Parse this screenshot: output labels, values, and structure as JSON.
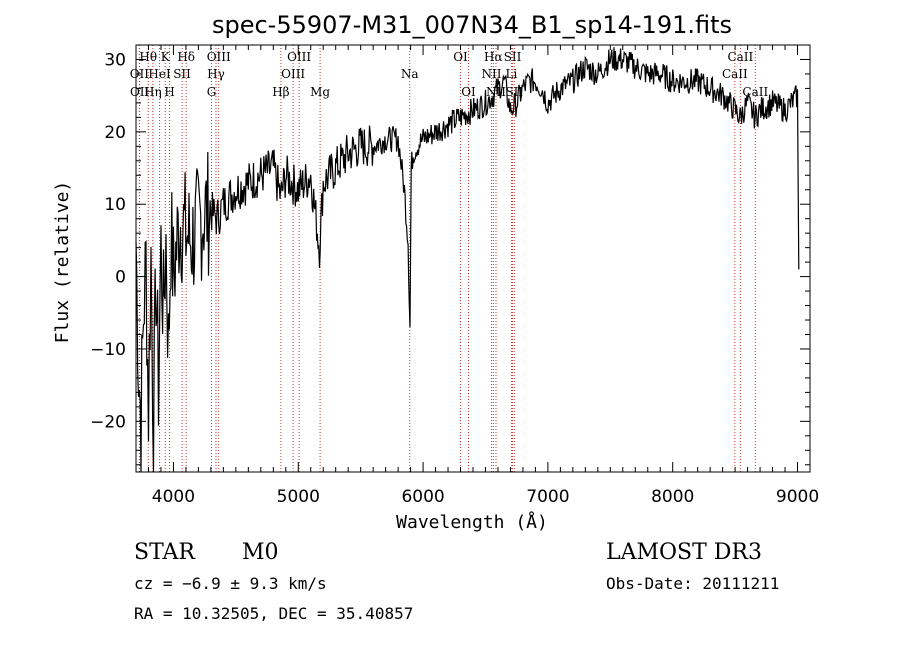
{
  "chart_data": {
    "type": "line",
    "title": "spec-55907-M31_007N34_B1_sp14-191.fits",
    "xlabel": "Wavelength (Å)",
    "ylabel": "Flux (relative)",
    "xlim": [
      3700,
      9100
    ],
    "ylim": [
      -27,
      32
    ],
    "x_ticks": [
      4000,
      5000,
      6000,
      7000,
      8000,
      9000
    ],
    "y_ticks": [
      -20,
      -10,
      0,
      10,
      20,
      30
    ],
    "grid": false,
    "series": [
      {
        "name": "spectrum",
        "x": [
          3700,
          3720,
          3740,
          3760,
          3780,
          3800,
          3820,
          3840,
          3860,
          3880,
          3900,
          3920,
          3940,
          3960,
          3980,
          4000,
          4050,
          4100,
          4150,
          4200,
          4250,
          4300,
          4350,
          4400,
          4450,
          4500,
          4600,
          4700,
          4800,
          4860,
          4900,
          5000,
          5100,
          5170,
          5200,
          5300,
          5400,
          5500,
          5600,
          5700,
          5800,
          5850,
          5880,
          5895,
          5905,
          5920,
          5950,
          6000,
          6100,
          6200,
          6300,
          6400,
          6500,
          6560,
          6600,
          6650,
          6700,
          6750,
          6800,
          6850,
          6900,
          6950,
          7000,
          7100,
          7200,
          7300,
          7400,
          7500,
          7600,
          7700,
          7800,
          7900,
          8000,
          8100,
          8200,
          8300,
          8400,
          8500,
          8540,
          8600,
          8660,
          8700,
          8800,
          8900,
          8950,
          9000,
          9010
        ],
        "y": [
          5,
          -12,
          -20,
          -5,
          2,
          -18,
          3,
          -22,
          0,
          -15,
          4,
          -5,
          5,
          -10,
          6,
          0,
          8,
          6,
          5,
          7,
          9,
          9,
          8,
          10,
          11,
          12,
          13,
          14,
          15,
          11,
          14,
          12,
          14,
          4,
          13,
          15,
          17,
          18,
          18,
          19,
          19,
          12,
          5,
          -7,
          15,
          17,
          18,
          19,
          20,
          21,
          22,
          23,
          24,
          25,
          26,
          27,
          23,
          24,
          26,
          27,
          27,
          26,
          24,
          26,
          27,
          29,
          28,
          30,
          30,
          29,
          28,
          28,
          27,
          27,
          27,
          26,
          25,
          23,
          22,
          24,
          22,
          23,
          24,
          23,
          24,
          25,
          1
        ]
      }
    ],
    "line_markers": [
      {
        "label": "Hθ",
        "x": 3798,
        "row": 1
      },
      {
        "label": "OII",
        "x": 3727,
        "row": 2
      },
      {
        "label": "OII",
        "x": 3729,
        "row": 3
      },
      {
        "label": "K",
        "x": 3934,
        "row": 1
      },
      {
        "label": "HeI",
        "x": 3889,
        "row": 2
      },
      {
        "label": "Hη",
        "x": 3835,
        "row": 3
      },
      {
        "label": "Hδ",
        "x": 4102,
        "row": 1
      },
      {
        "label": "SII",
        "x": 4069,
        "row": 2
      },
      {
        "label": "H",
        "x": 3969,
        "row": 3
      },
      {
        "label": "OIII",
        "x": 4363,
        "row": 1
      },
      {
        "label": "Hγ",
        "x": 4341,
        "row": 2
      },
      {
        "label": "G",
        "x": 4305,
        "row": 3
      },
      {
        "label": "OIII",
        "x": 5007,
        "row": 1
      },
      {
        "label": "OIII",
        "x": 4959,
        "row": 2
      },
      {
        "label": "Hβ",
        "x": 4861,
        "row": 3
      },
      {
        "label": "Mg",
        "x": 5175,
        "row": 3
      },
      {
        "label": "Na",
        "x": 5893,
        "row": 2
      },
      {
        "label": "OI",
        "x": 6300,
        "row": 1
      },
      {
        "label": "OI",
        "x": 6364,
        "row": 3
      },
      {
        "label": "Hα",
        "x": 6563,
        "row": 1
      },
      {
        "label": "SII",
        "x": 6717,
        "row": 1
      },
      {
        "label": "NII",
        "x": 6548,
        "row": 2
      },
      {
        "label": "Li",
        "x": 6708,
        "row": 2
      },
      {
        "label": "NII",
        "x": 6584,
        "row": 3
      },
      {
        "label": "SII",
        "x": 6731,
        "row": 3
      },
      {
        "label": "CaII",
        "x": 8542,
        "row": 1
      },
      {
        "label": "CaII",
        "x": 8498,
        "row": 2
      },
      {
        "label": "CaII",
        "x": 8662,
        "row": 3
      }
    ],
    "marker_color": "#c0392b"
  },
  "info": {
    "class": "STAR",
    "subclass": "M0",
    "survey": "LAMOST DR3",
    "cz": "cz = −6.9 ± 9.3 km/s",
    "obs_date": "Obs-Date: 20111211",
    "coords": "RA =  10.32505, DEC =  35.40857"
  }
}
